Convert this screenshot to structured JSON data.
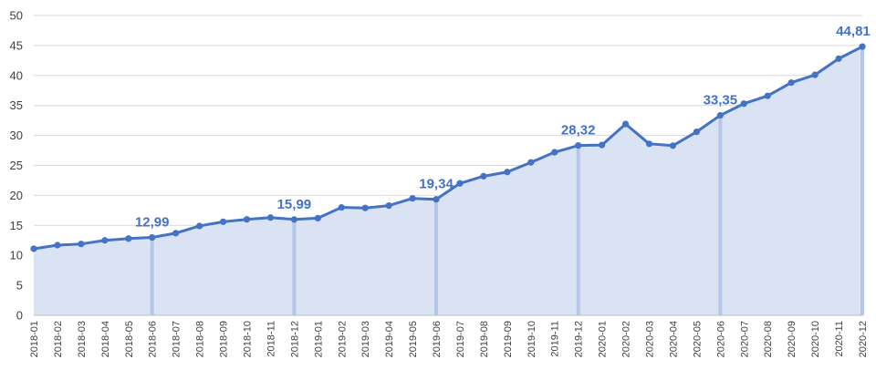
{
  "chart_data": {
    "type": "area",
    "title": "",
    "xlabel": "",
    "ylabel": "",
    "ylim": [
      0,
      50
    ],
    "yticks": [
      "0",
      "5",
      "10",
      "15",
      "20",
      "25",
      "30",
      "35",
      "40",
      "45",
      "50"
    ],
    "grid": true,
    "legend": "none",
    "colors": {
      "line": "#4472C4",
      "fill": "#DAE3F3",
      "highlight": "#B4C7E7",
      "grid": "#D9D9D9"
    },
    "categories": [
      "2018-01",
      "2018-02",
      "2018-03",
      "2018-04",
      "2018-05",
      "2018-06",
      "2018-07",
      "2018-08",
      "2018-09",
      "2018-10",
      "2018-11",
      "2018-12",
      "2019-01",
      "2019-02",
      "2019-03",
      "2019-04",
      "2019-05",
      "2019-06",
      "2019-07",
      "2019-08",
      "2019-09",
      "2019-10",
      "2019-11",
      "2019-12",
      "2020-01",
      "2020-02",
      "2020-03",
      "2020-04",
      "2020-05",
      "2020-06",
      "2020-07",
      "2020-08",
      "2020-09",
      "2020-10",
      "2020-11",
      "2020-12"
    ],
    "values": [
      11.1,
      11.7,
      11.9,
      12.5,
      12.8,
      12.99,
      13.7,
      14.9,
      15.6,
      16.0,
      16.3,
      15.99,
      16.2,
      18.0,
      17.9,
      18.3,
      19.5,
      19.34,
      22.0,
      23.2,
      23.9,
      25.5,
      27.2,
      28.32,
      28.4,
      31.9,
      28.6,
      28.3,
      30.6,
      33.35,
      35.3,
      36.6,
      38.8,
      40.1,
      42.8,
      44.81
    ],
    "highlights": [
      {
        "index": 5,
        "label": "12,99"
      },
      {
        "index": 11,
        "label": "15,99"
      },
      {
        "index": 17,
        "label": "19,34"
      },
      {
        "index": 23,
        "label": "28,32"
      },
      {
        "index": 29,
        "label": "33,35"
      },
      {
        "index": 35,
        "label": "44,81"
      }
    ]
  }
}
